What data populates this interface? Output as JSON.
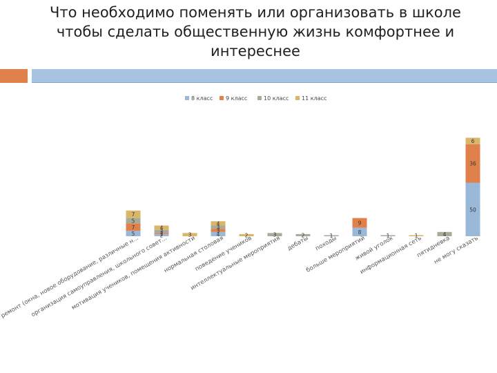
{
  "title": {
    "lines": [
      "Что необходимо поменять или организовать в школе",
      "чтобы сделать общественную жизнь комфортнее и",
      "интереснее"
    ]
  },
  "colors": {
    "accent_orange": "#e0804a",
    "accent_blue": "#a7c3e0",
    "series": [
      "#9ab8d8",
      "#e0804a",
      "#a9ab9a",
      "#d9b66a"
    ]
  },
  "chart_data": {
    "type": "bar",
    "stacked": true,
    "legend_position": "top",
    "categories": [
      "ремонт (окна, новое оборудование, различные н...",
      "организация самоуправления, школьного совет...",
      "мотивация учеников, помещения активности",
      "нормальная столовая",
      "поведение учеников",
      "интеллектуальные мероприятия",
      "дебаты",
      "походы",
      "больше мероприятий",
      "живой уголок",
      "информационная сеть",
      "пятидневка",
      "не могу сказать"
    ],
    "series": [
      {
        "name": "8 класс",
        "values": [
          5,
          2,
          null,
          4,
          null,
          null,
          null,
          null,
          8,
          null,
          null,
          null,
          50
        ]
      },
      {
        "name": "9 класс",
        "values": [
          7,
          1,
          null,
          3,
          null,
          null,
          null,
          null,
          9,
          null,
          null,
          null,
          36
        ]
      },
      {
        "name": "10 класс",
        "values": [
          5,
          3,
          null,
          3,
          null,
          3,
          2,
          1,
          null,
          1,
          null,
          4,
          null
        ]
      },
      {
        "name": "11 класс",
        "values": [
          7,
          4,
          3,
          4,
          2,
          null,
          null,
          null,
          null,
          null,
          1,
          null,
          6
        ]
      }
    ],
    "labels": [
      [
        "5",
        "7",
        "5",
        "7"
      ],
      [
        "2",
        "1",
        "3",
        "4"
      ],
      [
        "",
        "",
        "",
        "3"
      ],
      [
        "4",
        "3",
        "3",
        "4"
      ],
      [
        "",
        "",
        "",
        "2"
      ],
      [
        "",
        "",
        "3",
        ""
      ],
      [
        "",
        "",
        "2",
        ""
      ],
      [
        "",
        "",
        "1",
        ""
      ],
      [
        "8",
        "9",
        "",
        ""
      ],
      [
        "",
        "",
        "1",
        ""
      ],
      [
        "",
        "",
        "",
        "1"
      ],
      [
        "",
        "",
        "4",
        ""
      ],
      [
        "50",
        "36",
        "",
        "6"
      ]
    ],
    "ylim": [
      0,
      100
    ],
    "grid": false
  }
}
